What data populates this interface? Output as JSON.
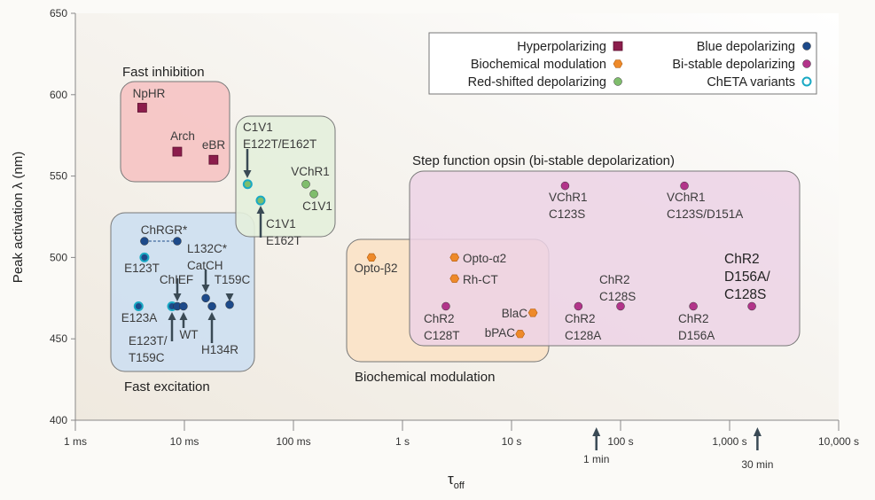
{
  "chart_data": {
    "type": "scatter",
    "xlabel": "τ",
    "xlabel_sub": "off",
    "ylabel": "Peak activation λ (nm)",
    "x_scale": "log",
    "xlim": [
      0.001,
      10000
    ],
    "ylim": [
      400,
      650
    ],
    "grid": false,
    "x_ticks": [
      {
        "value": 0.001,
        "label": "1 ms"
      },
      {
        "value": 0.01,
        "label": "10 ms"
      },
      {
        "value": 0.1,
        "label": "100 ms"
      },
      {
        "value": 1,
        "label": "1 s"
      },
      {
        "value": 10,
        "label": "10 s"
      },
      {
        "value": 100,
        "label": "100 s"
      },
      {
        "value": 1000,
        "label": "1,000 s"
      },
      {
        "value": 10000,
        "label": "10,000 s"
      }
    ],
    "y_ticks": [
      650,
      600,
      550,
      500,
      450,
      400
    ],
    "x_markers": [
      {
        "value": 60,
        "label": "1 min"
      },
      {
        "value": 1800,
        "label": "30 min"
      }
    ],
    "legend_position": "top-right",
    "legend": [
      {
        "key": "hyper",
        "label": "Hyperpolarizing",
        "marker": "square",
        "color": "#8c1d4c"
      },
      {
        "key": "biochem",
        "label": "Biochemical modulation",
        "marker": "hexagon",
        "color": "#ee8a2a"
      },
      {
        "key": "red",
        "label": "Red-shifted depolarizing",
        "marker": "circle",
        "color": "#7fbd6c"
      },
      {
        "key": "blue",
        "label": "Blue depolarizing",
        "marker": "circle",
        "color": "#1d4a8a"
      },
      {
        "key": "bistable",
        "label": "Bi-stable depolarizing",
        "marker": "circle",
        "color": "#b2348a"
      },
      {
        "key": "cheta",
        "label": "ChETA variants",
        "marker": "ring",
        "color": "#19a9c4"
      }
    ],
    "regions": [
      {
        "label": "Fast inhibition",
        "color": "#f6c3c3"
      },
      {
        "label": "Step function opsin (bi-stable depolarization)",
        "color": "#ecd2e5"
      },
      {
        "label": "Biochemical modulation",
        "color": "#fbe2c6"
      },
      {
        "label": "Fast excitation",
        "color": "#cddff1"
      },
      {
        "label": "",
        "color": "#e4efdc"
      }
    ],
    "points": [
      {
        "label": [
          "NpHR"
        ],
        "x": 0.0041,
        "y": 592,
        "category": "hyper"
      },
      {
        "label": [
          "Arch"
        ],
        "x": 0.0086,
        "y": 565,
        "category": "hyper"
      },
      {
        "label": [
          "eBR"
        ],
        "x": 0.0185,
        "y": 560,
        "category": "hyper"
      },
      {
        "label": [
          "C1V1",
          "E122T/E162T"
        ],
        "x": 0.038,
        "y": 545,
        "category": "red",
        "cheta": true
      },
      {
        "label": [
          "C1V1",
          "E162T"
        ],
        "x": 0.05,
        "y": 535,
        "category": "red",
        "cheta": true
      },
      {
        "label": [
          "VChR1"
        ],
        "x": 0.13,
        "y": 545,
        "category": "red"
      },
      {
        "label": [
          "C1V1"
        ],
        "x": 0.154,
        "y": 539,
        "category": "red"
      },
      {
        "label": [
          "ChRGR*"
        ],
        "x": 0.0043,
        "y": 510,
        "category": "blue"
      },
      {
        "label": [],
        "x": 0.0086,
        "y": 510,
        "category": "blue"
      },
      {
        "label": [
          "E123T"
        ],
        "x": 0.0043,
        "y": 500,
        "category": "blue",
        "cheta": true
      },
      {
        "label": [
          "E123A"
        ],
        "x": 0.0038,
        "y": 470,
        "category": "blue",
        "cheta": true
      },
      {
        "label": [
          "E123T/",
          "T159C"
        ],
        "x": 0.0077,
        "y": 470,
        "category": "blue",
        "cheta": true
      },
      {
        "label": [
          "ChIEF"
        ],
        "x": 0.0086,
        "y": 470,
        "category": "blue"
      },
      {
        "label": [
          "WT"
        ],
        "x": 0.0098,
        "y": 470,
        "category": "blue"
      },
      {
        "label": [
          "L132C*",
          "CatCH"
        ],
        "x": 0.0157,
        "y": 475,
        "category": "blue"
      },
      {
        "label": [
          "H134R"
        ],
        "x": 0.0179,
        "y": 470,
        "category": "blue"
      },
      {
        "label": [
          "T159C"
        ],
        "x": 0.026,
        "y": 471,
        "category": "blue"
      },
      {
        "label": [
          "Opto-β2"
        ],
        "x": 0.52,
        "y": 500,
        "category": "biochem"
      },
      {
        "label": [
          "Opto-α2"
        ],
        "x": 3.0,
        "y": 500,
        "category": "biochem"
      },
      {
        "label": [
          "Rh-CT"
        ],
        "x": 3.0,
        "y": 487,
        "category": "biochem"
      },
      {
        "label": [
          "ChR2",
          "C128T"
        ],
        "x": 2.5,
        "y": 470,
        "category": "bistable"
      },
      {
        "label": [
          "BlaC"
        ],
        "x": 15.7,
        "y": 466,
        "category": "biochem"
      },
      {
        "label": [
          "bPAC"
        ],
        "x": 12,
        "y": 453,
        "category": "biochem"
      },
      {
        "label": [
          "VChR1",
          "C123S"
        ],
        "x": 31,
        "y": 544,
        "category": "bistable"
      },
      {
        "label": [
          "VChR1",
          "C123S/D151A"
        ],
        "x": 385,
        "y": 544,
        "category": "bistable"
      },
      {
        "label": [
          "ChR2",
          "C128A"
        ],
        "x": 41,
        "y": 470,
        "category": "bistable"
      },
      {
        "label": [
          "ChR2",
          "C128S"
        ],
        "x": 100,
        "y": 470,
        "category": "bistable"
      },
      {
        "label": [
          "ChR2",
          "D156A"
        ],
        "x": 465,
        "y": 470,
        "category": "bistable"
      },
      {
        "label": [
          "ChR2",
          "D156A/",
          "C128S"
        ],
        "x": 1600,
        "y": 470,
        "category": "bistable"
      }
    ]
  }
}
